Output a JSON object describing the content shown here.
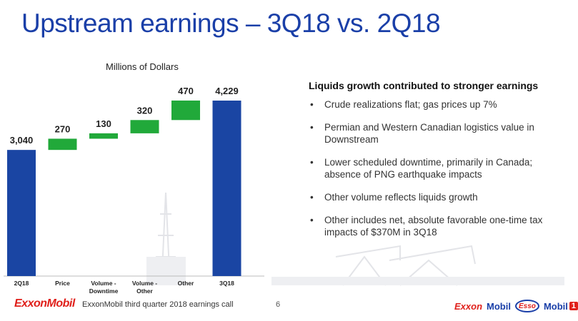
{
  "title": "Upstream earnings – 3Q18 vs. 2Q18",
  "chart_data": {
    "type": "bar",
    "subtitle": "Millions of Dollars",
    "start": {
      "label": "2Q18",
      "value": 3040,
      "display": "3,040"
    },
    "steps": [
      {
        "label": [
          "Price"
        ],
        "value": 270,
        "display": "270"
      },
      {
        "label": [
          "Volume -",
          "Downtime"
        ],
        "value": 130,
        "display": "130"
      },
      {
        "label": [
          "Volume -",
          "Other"
        ],
        "value": 320,
        "display": "320"
      },
      {
        "label": [
          "Other"
        ],
        "value": 470,
        "display": "470"
      }
    ],
    "end": {
      "label": "3Q18",
      "value": 4229,
      "display": "4,229"
    },
    "colors": {
      "total": "#1a45a3",
      "increase": "#21a93a"
    }
  },
  "right_panel": {
    "heading": "Liquids growth contributed to stronger earnings",
    "bullets": [
      "Crude realizations flat; gas prices up 7%",
      "Permian and Western Canadian logistics value in Downstream",
      "Lower scheduled downtime, primarily in Canada; absence of PNG earthquake impacts",
      "Other volume reflects liquids growth",
      "Other includes net, absolute favorable one-time tax impacts of $370M in 3Q18"
    ],
    "bullet_glyph": "•"
  },
  "footer": {
    "logo": "ExxonMobil",
    "text": "ExxonMobil third quarter 2018 earnings call",
    "page": "6",
    "brands": {
      "exxon": "Exxon",
      "mobil": "Mobil",
      "esso": "Esso",
      "mobil1_text": "Mobil",
      "mobil1_num": "1"
    }
  }
}
